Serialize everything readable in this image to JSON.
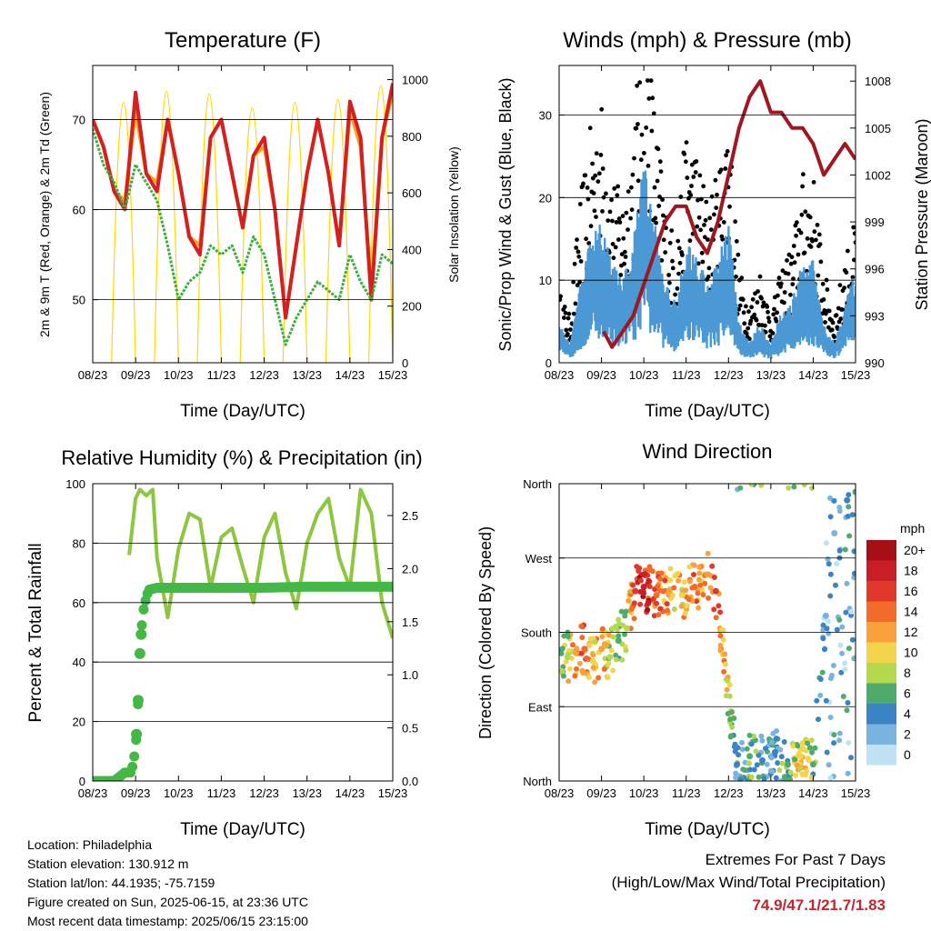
{
  "panels": {
    "temperature": {
      "title": "Temperature (F)",
      "xlabel": "Time (Day/UTC)",
      "ylabel_left": "2m & 9m T (Red, Orange) & 2m Td (Green)",
      "ylabel_right": "Solar Insolation (Yellow)"
    },
    "winds": {
      "title": "Winds (mph) & Pressure (mb)",
      "xlabel": "Time (Day/UTC)",
      "ylabel_left": "Sonic/Prop Wind & Gust (Blue, Black)",
      "ylabel_right": "Station Pressure (Maroon)"
    },
    "humidity": {
      "title": "Relative Humidity (%) & Precipitation (in)",
      "xlabel": "Time (Day/UTC)",
      "ylabel_left": "Percent & Total Rainfall"
    },
    "direction": {
      "title": "Wind Direction",
      "xlabel": "Time (Day/UTC)",
      "ylabel_left": "Direction (Colored By Speed)"
    }
  },
  "x_ticks": [
    "08/23",
    "09/23",
    "10/23",
    "11/23",
    "12/23",
    "13/23",
    "14/23",
    "15/23"
  ],
  "legend": {
    "title": "mph",
    "labels": [
      "20+",
      "18",
      "16",
      "14",
      "12",
      "10",
      "8",
      "6",
      "4",
      "2",
      "0"
    ],
    "colors": [
      "#a50f15",
      "#c81e26",
      "#e0382a",
      "#f26b2a",
      "#f9a23c",
      "#f2d54a",
      "#b5d84e",
      "#4eab6a",
      "#3a83c4",
      "#79b4e0",
      "#bfe2f5"
    ]
  },
  "info": {
    "location": "Location: Philadelphia",
    "elevation": "Station elevation: 130.912 m",
    "latlon": "Station lat/lon: 44.1935; -75.7159",
    "created": "Figure created on Sun, 2025-06-15, at 23:36 UTC",
    "timestamp": "Most recent data timestamp: 2025/06/15 23:15:00"
  },
  "extremes": {
    "title": "Extremes For Past 7 Days",
    "subtitle": "(High/Low/Max Wind/Total Precipitation)",
    "values": "74.9/47.1/21.7/1.83"
  },
  "colors": {
    "temp_2m": "#d42020",
    "temp_9m": "#f5a020",
    "dewpoint": "#3fae3f",
    "solar": "#ffd700",
    "wind": "#4a98d4",
    "gust": "#000000",
    "pressure": "#a0181f",
    "rh": "#8dc63f",
    "precip": "#44b844",
    "extremes_text": "#c0262d"
  },
  "chart_data": [
    {
      "type": "line",
      "title": "Temperature (F)",
      "xlabel": "Time (Day/UTC)",
      "ylabel": "2m & 9m T (Red, Orange) & 2m Td (Green)",
      "y2label": "Solar Insolation (Yellow)",
      "x": [
        8,
        8.25,
        8.5,
        8.75,
        9,
        9.25,
        9.5,
        9.75,
        10,
        10.25,
        10.5,
        10.75,
        11,
        11.25,
        11.5,
        11.75,
        12,
        12.25,
        12.5,
        12.75,
        13,
        13.25,
        13.5,
        13.75,
        14,
        14.25,
        14.5,
        14.75,
        15
      ],
      "xlim": [
        8,
        15
      ],
      "ylim": [
        43,
        76
      ],
      "y2lim": [
        0,
        1050
      ],
      "series": [
        {
          "name": "2m T",
          "values": [
            70,
            67,
            62,
            60,
            73,
            64,
            62,
            70,
            64,
            57,
            55,
            68,
            70,
            64,
            58,
            66,
            68,
            60,
            48,
            56,
            64,
            70,
            64,
            56,
            72,
            68,
            50,
            68,
            74
          ]
        },
        {
          "name": "9m T",
          "values": [
            70,
            67,
            62,
            61,
            71,
            64,
            63,
            70,
            64,
            57,
            56,
            68,
            70,
            64,
            58,
            66,
            67,
            60,
            48,
            56,
            64,
            70,
            64,
            56,
            71,
            67,
            51,
            68,
            73
          ]
        },
        {
          "name": "2m Td",
          "values": [
            69,
            65,
            63,
            60,
            65,
            63,
            61,
            56,
            50,
            52,
            53,
            56,
            55,
            56,
            53,
            57,
            55,
            50,
            45,
            48,
            50,
            52,
            51,
            50,
            55,
            52,
            50,
            55,
            54
          ]
        }
      ],
      "solar_peaks": [
        {
          "x": 8.72,
          "value": 920
        },
        {
          "x": 9.72,
          "value": 960
        },
        {
          "x": 10.72,
          "value": 950
        },
        {
          "x": 11.72,
          "value": 900
        },
        {
          "x": 12.72,
          "value": 920
        },
        {
          "x": 13.72,
          "value": 930
        },
        {
          "x": 14.72,
          "value": 980
        }
      ]
    },
    {
      "type": "line",
      "title": "Winds (mph) & Pressure (mb)",
      "xlabel": "Time (Day/UTC)",
      "ylabel": "Sonic/Prop Wind & Gust (Blue, Black)",
      "y2label": "Station Pressure (Maroon)",
      "x": [
        8,
        8.25,
        8.5,
        8.75,
        9,
        9.25,
        9.5,
        9.75,
        10,
        10.25,
        10.5,
        10.75,
        11,
        11.25,
        11.5,
        11.75,
        12,
        12.25,
        12.5,
        12.75,
        13,
        13.25,
        13.5,
        13.75,
        14,
        14.25,
        14.5,
        14.75,
        15
      ],
      "xlim": [
        8,
        15
      ],
      "ylim": [
        0,
        36
      ],
      "y2lim": [
        990,
        1009
      ],
      "series": [
        {
          "name": "Wind",
          "values": [
            4,
            2,
            8,
            12,
            14,
            10,
            8,
            12,
            20,
            14,
            8,
            6,
            12,
            11,
            8,
            10,
            14,
            4,
            2,
            4,
            2,
            5,
            6,
            10,
            10,
            4,
            2,
            6,
            9
          ]
        },
        {
          "name": "Gust",
          "values": [
            6,
            4,
            14,
            20,
            22,
            16,
            14,
            20,
            32,
            22,
            14,
            10,
            20,
            18,
            14,
            16,
            22,
            8,
            5,
            8,
            4,
            8,
            10,
            16,
            16,
            8,
            4,
            9,
            12
          ]
        },
        {
          "name": "Pressure",
          "x": [
            9.05,
            9.25,
            9.5,
            9.75,
            10,
            10.25,
            10.5,
            10.75,
            11,
            11.25,
            11.5,
            11.75,
            12,
            12.25,
            12.5,
            12.75,
            13,
            13.25,
            13.5,
            13.75,
            14,
            14.25,
            14.5,
            14.75,
            15
          ],
          "values": [
            992,
            991,
            992,
            993,
            995,
            997,
            999,
            1000,
            1000,
            998,
            997,
            999,
            1002,
            1005,
            1007,
            1008,
            1006,
            1006,
            1005,
            1005,
            1004,
            1002,
            1003,
            1004,
            1003
          ]
        }
      ]
    },
    {
      "type": "scatter",
      "title": "Relative Humidity (%) & Precipitation (in)",
      "xlabel": "Time (Day/UTC)",
      "ylabel": "Percent & Total Rainfall",
      "xlim": [
        8,
        15
      ],
      "ylim": [
        0,
        100
      ],
      "y2lim": [
        0,
        2.8
      ],
      "series": [
        {
          "name": "Relative Humidity",
          "x": [
            8.85,
            9,
            9.1,
            9.25,
            9.4,
            9.5,
            9.75,
            10,
            10.25,
            10.5,
            10.75,
            11,
            11.25,
            11.5,
            11.75,
            12,
            12.25,
            12.5,
            12.75,
            13,
            13.25,
            13.5,
            13.75,
            14,
            14.25,
            14.5,
            14.75,
            15
          ],
          "values": [
            76,
            95,
            98,
            96,
            98,
            75,
            55,
            78,
            90,
            88,
            65,
            82,
            85,
            72,
            60,
            82,
            90,
            70,
            58,
            80,
            90,
            95,
            75,
            65,
            98,
            90,
            60,
            48
          ]
        },
        {
          "name": "Total Precipitation",
          "x": [
            8,
            8.5,
            8.75,
            8.9,
            9,
            9.05,
            9.1,
            9.15,
            9.2,
            9.3,
            9.5,
            10,
            11,
            12,
            13,
            14,
            15
          ],
          "values": [
            0,
            0,
            0.08,
            0.08,
            0.3,
            0.65,
            1.2,
            1.5,
            1.65,
            1.8,
            1.82,
            1.82,
            1.82,
            1.82,
            1.83,
            1.83,
            1.83
          ]
        }
      ]
    },
    {
      "type": "scatter",
      "title": "Wind Direction",
      "xlabel": "Time (Day/UTC)",
      "ylabel": "Direction (Colored By Speed)",
      "xlim": [
        8,
        15
      ],
      "y_ticks": [
        "North",
        "East",
        "South",
        "West",
        "North"
      ],
      "ylim": [
        0,
        360
      ],
      "points": [
        {
          "x": 8.2,
          "dir": 150,
          "speed": 8
        },
        {
          "x": 8.4,
          "dir": 155,
          "speed": 12
        },
        {
          "x": 8.6,
          "dir": 160,
          "speed": 14
        },
        {
          "x": 8.8,
          "dir": 145,
          "speed": 10
        },
        {
          "x": 9.0,
          "dir": 160,
          "speed": 12
        },
        {
          "x": 9.2,
          "dir": 150,
          "speed": 8
        },
        {
          "x": 9.4,
          "dir": 170,
          "speed": 6
        },
        {
          "x": 9.6,
          "dir": 185,
          "speed": 8
        },
        {
          "x": 9.8,
          "dir": 230,
          "speed": 16
        },
        {
          "x": 10.0,
          "dir": 235,
          "speed": 18
        },
        {
          "x": 10.3,
          "dir": 225,
          "speed": 14
        },
        {
          "x": 10.6,
          "dir": 230,
          "speed": 12
        },
        {
          "x": 10.9,
          "dir": 225,
          "speed": 10
        },
        {
          "x": 11.2,
          "dir": 235,
          "speed": 14
        },
        {
          "x": 11.5,
          "dir": 250,
          "speed": 12
        },
        {
          "x": 11.7,
          "dir": 230,
          "speed": 16
        },
        {
          "x": 12.2,
          "dir": 20,
          "speed": 4
        },
        {
          "x": 12.5,
          "dir": 30,
          "speed": 6
        },
        {
          "x": 12.8,
          "dir": 25,
          "speed": 4
        },
        {
          "x": 13.1,
          "dir": 35,
          "speed": 4
        },
        {
          "x": 13.4,
          "dir": 20,
          "speed": 6
        },
        {
          "x": 13.7,
          "dir": 30,
          "speed": 10
        },
        {
          "x": 14.0,
          "dir": 20,
          "speed": 6
        },
        {
          "x": 14.3,
          "dir": 200,
          "speed": 2
        },
        {
          "x": 14.5,
          "dir": 300,
          "speed": 2
        },
        {
          "x": 14.8,
          "dir": 340,
          "speed": 4
        },
        {
          "x": 15.0,
          "dir": 350,
          "speed": 6
        }
      ]
    }
  ]
}
